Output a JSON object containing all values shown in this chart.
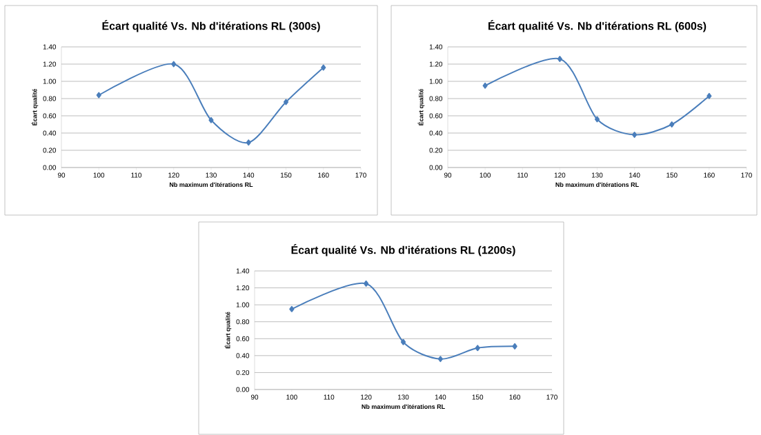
{
  "chart_data": [
    {
      "type": "line",
      "title": "Écart qualité Vs. Nb d'itérations RL (300s)",
      "xlabel": "Nb maximum d'itérations RL",
      "ylabel": "Écart qualité",
      "x": [
        100,
        120,
        130,
        140,
        150,
        160
      ],
      "values": [
        0.84,
        1.2,
        0.55,
        0.29,
        0.76,
        1.16
      ],
      "color": "#4a7ebb",
      "marker": "diamond",
      "line_style": "solid",
      "grid": "y",
      "xlim": [
        90,
        170
      ],
      "ylim": [
        0,
        1.4
      ],
      "xticks": [
        90,
        100,
        110,
        120,
        130,
        140,
        150,
        160,
        170
      ],
      "yticks": [
        {
          "value": 0,
          "label": "0.00"
        },
        {
          "value": 0.2,
          "label": "0.20"
        },
        {
          "value": 0.4,
          "label": "0.40"
        },
        {
          "value": 0.6,
          "label": "0.60"
        },
        {
          "value": 0.8,
          "label": "0.80"
        },
        {
          "value": 1.0,
          "label": "1.00"
        },
        {
          "value": 1.2,
          "label": "1.20"
        },
        {
          "value": 1.4,
          "label": "1.40"
        }
      ]
    },
    {
      "type": "line",
      "title": "Écart qualité Vs. Nb d'itérations RL (600s)",
      "xlabel": "Nb maximum d'itérations RL",
      "ylabel": "Écart qualité",
      "x": [
        100,
        120,
        130,
        140,
        150,
        160
      ],
      "values": [
        0.95,
        1.26,
        0.56,
        0.38,
        0.5,
        0.83
      ],
      "color": "#4a7ebb",
      "marker": "diamond",
      "line_style": "solid",
      "grid": "y",
      "xlim": [
        90,
        170
      ],
      "ylim": [
        0,
        1.4
      ],
      "xticks": [
        90,
        100,
        110,
        120,
        130,
        140,
        150,
        160,
        170
      ],
      "yticks": [
        {
          "value": 0,
          "label": "0.00"
        },
        {
          "value": 0.2,
          "label": "0.20"
        },
        {
          "value": 0.4,
          "label": "0.40"
        },
        {
          "value": 0.6,
          "label": "0.60"
        },
        {
          "value": 0.8,
          "label": "0.80"
        },
        {
          "value": 1.0,
          "label": "1.00"
        },
        {
          "value": 1.2,
          "label": "1.20"
        },
        {
          "value": 1.4,
          "label": "1.40"
        }
      ]
    },
    {
      "type": "line",
      "title": "Écart qualité Vs. Nb d'itérations RL (1200s)",
      "xlabel": "Nb maximum d'itérations RL",
      "ylabel": "Écart qualité",
      "x": [
        100,
        120,
        130,
        140,
        150,
        160
      ],
      "values": [
        0.95,
        1.25,
        0.56,
        0.36,
        0.49,
        0.51
      ],
      "color": "#4a7ebb",
      "marker": "diamond",
      "line_style": "solid",
      "grid": "y",
      "xlim": [
        90,
        170
      ],
      "ylim": [
        0,
        1.4
      ],
      "xticks": [
        90,
        100,
        110,
        120,
        130,
        140,
        150,
        160,
        170
      ],
      "yticks": [
        {
          "value": 0,
          "label": "0.00"
        },
        {
          "value": 0.2,
          "label": "0.20"
        },
        {
          "value": 0.4,
          "label": "0.40"
        },
        {
          "value": 0.6,
          "label": "0.60"
        },
        {
          "value": 0.8,
          "label": "0.80"
        },
        {
          "value": 1.0,
          "label": "1.00"
        },
        {
          "value": 1.2,
          "label": "1.20"
        },
        {
          "value": 1.4,
          "label": "1.40"
        }
      ]
    }
  ]
}
